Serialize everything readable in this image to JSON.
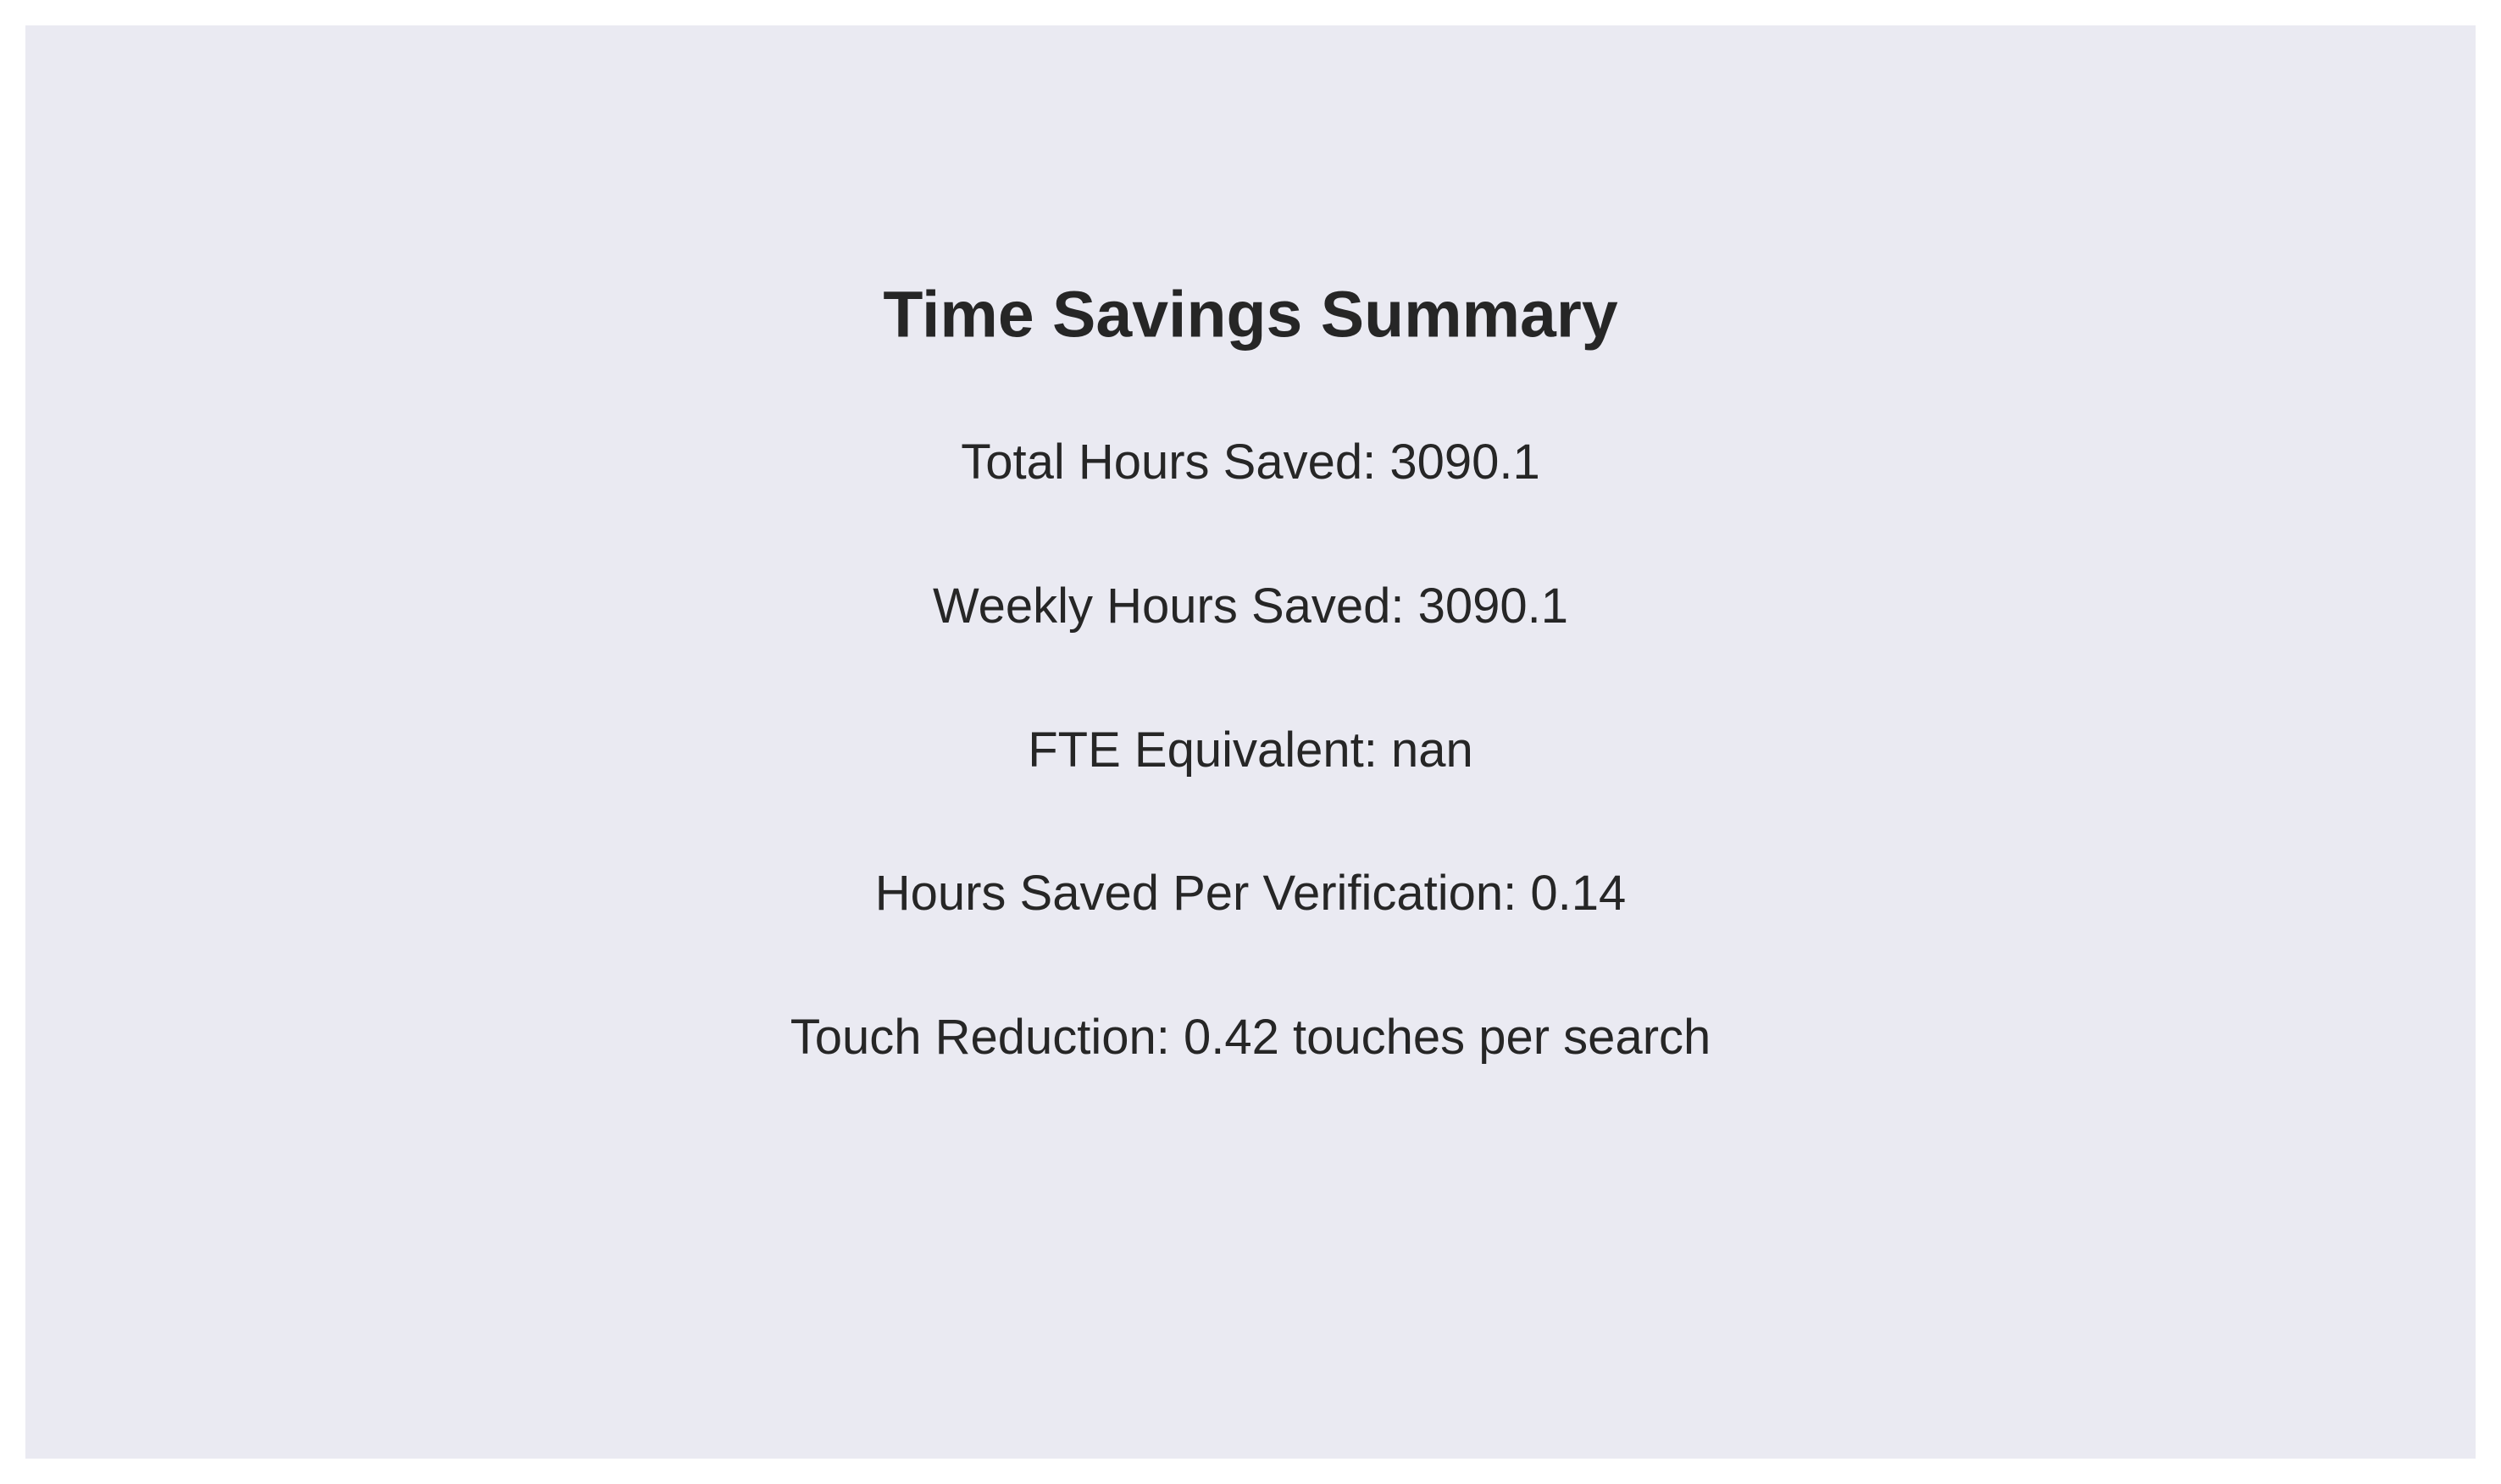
{
  "chart_data": {
    "type": "table",
    "title": "Time Savings Summary",
    "rows": [
      {
        "label": "Total Hours Saved",
        "value": "3090.1",
        "text": "Total Hours Saved: 3090.1"
      },
      {
        "label": "Weekly Hours Saved",
        "value": "3090.1",
        "text": "Weekly Hours Saved: 3090.1"
      },
      {
        "label": "FTE Equivalent",
        "value": "nan",
        "text": "FTE Equivalent: nan"
      },
      {
        "label": "Hours Saved Per Verification",
        "value": "0.14",
        "text": "Hours Saved Per Verification: 0.14"
      },
      {
        "label": "Touch Reduction",
        "value": "0.42 touches per search",
        "text": "Touch Reduction: 0.42 touches per search"
      }
    ],
    "grid": false
  },
  "colors": {
    "background": "#eaeaf2",
    "text": "#262626"
  }
}
